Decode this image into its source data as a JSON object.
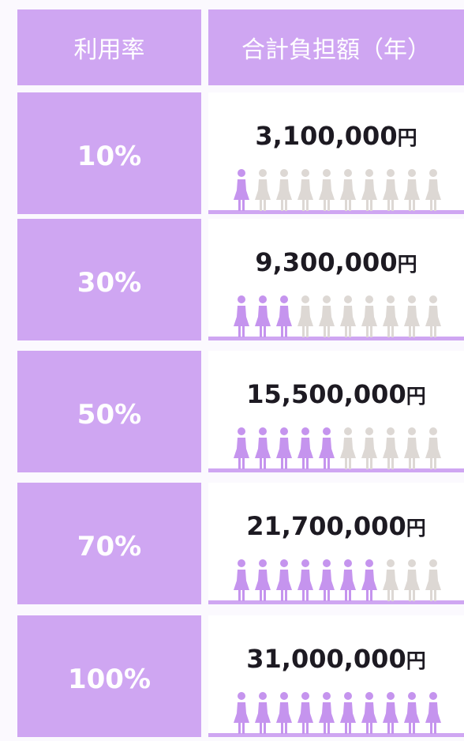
{
  "header": [
    "利用率",
    "合計負担額（年）"
  ],
  "icon_count": 10,
  "rows": [
    {
      "rate": "10%",
      "amount": "3,100,000",
      "unit": "円",
      "filled_icons": 1
    },
    {
      "rate": "30%",
      "amount": "9,300,000",
      "unit": "円",
      "filled_icons": 3
    },
    {
      "rate": "50%",
      "amount": "15,500,000",
      "unit": "円",
      "filled_icons": 5
    },
    {
      "rate": "70%",
      "amount": "21,700,000",
      "unit": "円",
      "filled_icons": 7
    },
    {
      "rate": "100%",
      "amount": "31,000,000",
      "unit": "円",
      "filled_icons": 10
    }
  ]
}
